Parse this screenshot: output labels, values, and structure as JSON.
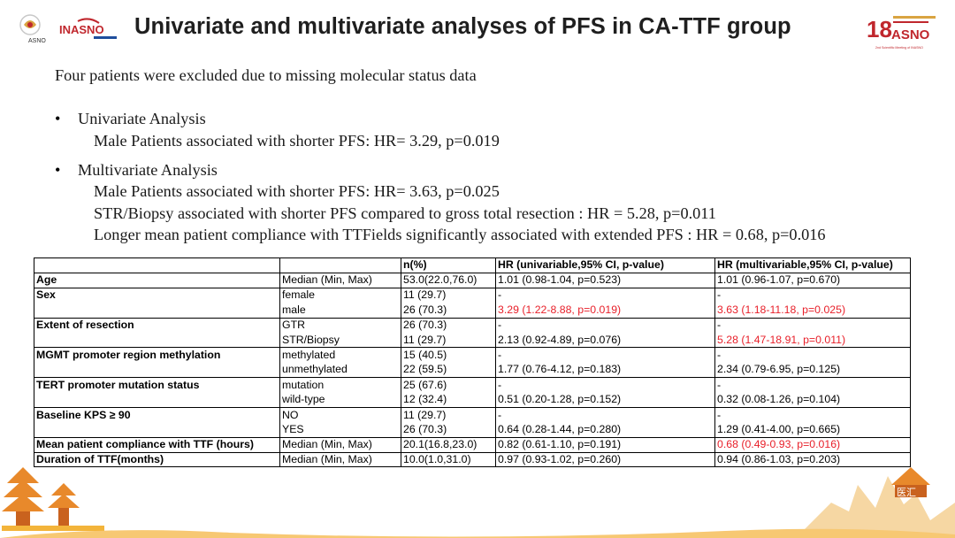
{
  "header": {
    "title": "Univariate and multivariate analyses of PFS in CA-TTF group",
    "logo_left_text": "ASNO",
    "logo_mid_text": "INASNO",
    "logo_right_number": "18",
    "logo_right_text": "ASNO",
    "logo_right_caption": "2nd Scientific Meeting of INASNO"
  },
  "intro": "Four patients were excluded due to missing molecular status data",
  "bullets": [
    {
      "title": "Univariate Analysis",
      "lines": [
        "Male Patients associated with shorter PFS: HR= 3.29, p=0.019"
      ]
    },
    {
      "title": "Multivariate Analysis",
      "lines": [
        "Male Patients associated with shorter PFS: HR= 3.63, p=0.025",
        "STR/Biopsy associated with shorter PFS compared to gross total resection : HR = 5.28, p=0.011",
        "Longer mean patient compliance with TTFields significantly associated with extended PFS : HR = 0.68, p=0.016"
      ]
    }
  ],
  "table": {
    "columns": [
      "",
      "",
      "n(%)",
      "HR (univariable,95% CI, p-value)",
      "HR (multivariable,95% CI, p-value)"
    ],
    "rows": [
      [
        "Age",
        "Median (Min, Max)",
        "53.0(22.0,76.0)",
        "1.01 (0.98-1.04, p=0.523)",
        "1.01 (0.96-1.07, p=0.670)"
      ],
      [
        "Sex",
        "female",
        "11 (29.7)",
        "-",
        "-"
      ],
      [
        "",
        "male",
        "26 (70.3)",
        "3.29 (1.22-8.88, p=0.019)",
        "3.63 (1.18-11.18, p=0.025)"
      ],
      [
        "Extent of resection",
        "GTR",
        "26 (70.3)",
        "-",
        "-"
      ],
      [
        "",
        "STR/Biopsy",
        "11 (29.7)",
        "2.13 (0.92-4.89, p=0.076)",
        "5.28 (1.47-18.91, p=0.011)"
      ],
      [
        "MGMT promoter region methylation",
        "methylated",
        "15 (40.5)",
        "-",
        "-"
      ],
      [
        "",
        "unmethylated",
        "22 (59.5)",
        "1.77 (0.76-4.12, p=0.183)",
        "2.34 (0.79-6.95, p=0.125)"
      ],
      [
        "TERT promoter mutation status",
        "mutation",
        "25 (67.6)",
        "-",
        "-"
      ],
      [
        "",
        "wild-type",
        "12 (32.4)",
        "0.51 (0.20-1.28, p=0.152)",
        "0.32 (0.08-1.26, p=0.104)"
      ],
      [
        "Baseline KPS ≥ 90",
        "NO",
        "11 (29.7)",
        "-",
        "-"
      ],
      [
        "",
        "YES",
        "26 (70.3)",
        "0.64 (0.28-1.44, p=0.280)",
        "1.29 (0.41-4.00, p=0.665)"
      ],
      [
        "Mean patient compliance with TTF (hours)",
        "Median (Min, Max)",
        "20.1(16.8,23.0)",
        "0.82 (0.61-1.10, p=0.191)",
        "0.68 (0.49-0.93, p=0.016)"
      ],
      [
        "Duration of TTF(months)",
        "Median (Min, Max)",
        "10.0(1.0,31.0)",
        "0.97 (0.93-1.02, p=0.260)",
        "0.94 (0.86-1.03, p=0.203)"
      ]
    ],
    "highlight_color": "#e8202a"
  },
  "watermark_text": "医汇"
}
